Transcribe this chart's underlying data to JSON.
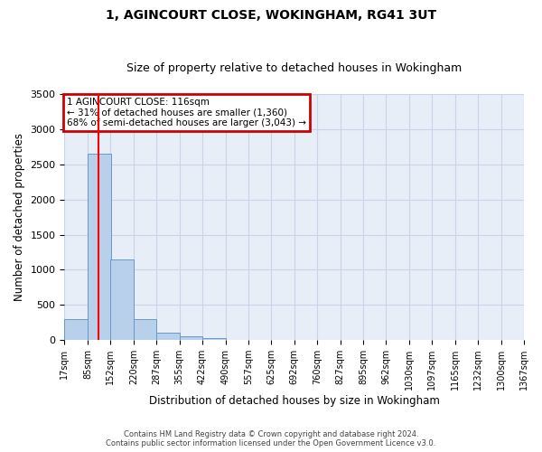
{
  "title1": "1, AGINCOURT CLOSE, WOKINGHAM, RG41 3UT",
  "title2": "Size of property relative to detached houses in Wokingham",
  "xlabel": "Distribution of detached houses by size in Wokingham",
  "ylabel": "Number of detached properties",
  "footer1": "Contains HM Land Registry data © Crown copyright and database right 2024.",
  "footer2": "Contains public sector information licensed under the Open Government Licence v3.0.",
  "bin_edges": [
    17,
    85,
    152,
    220,
    287,
    355,
    422,
    490,
    557,
    625,
    692,
    760,
    827,
    895,
    962,
    1030,
    1097,
    1165,
    1232,
    1300,
    1367
  ],
  "bar_heights": [
    300,
    2650,
    1150,
    300,
    100,
    60,
    30,
    0,
    0,
    0,
    0,
    0,
    0,
    0,
    0,
    0,
    0,
    0,
    0,
    0
  ],
  "bar_color": "#b8d0ea",
  "bar_edgecolor": "#6699cc",
  "grid_color": "#c8d4e8",
  "background_color": "#e8eef8",
  "red_line_x": 116,
  "annotation_text": "1 AGINCOURT CLOSE: 116sqm\n← 31% of detached houses are smaller (1,360)\n68% of semi-detached houses are larger (3,043) →",
  "annotation_box_color": "#cc0000",
  "ylim": [
    0,
    3500
  ],
  "yticks": [
    0,
    500,
    1000,
    1500,
    2000,
    2500,
    3000,
    3500
  ]
}
